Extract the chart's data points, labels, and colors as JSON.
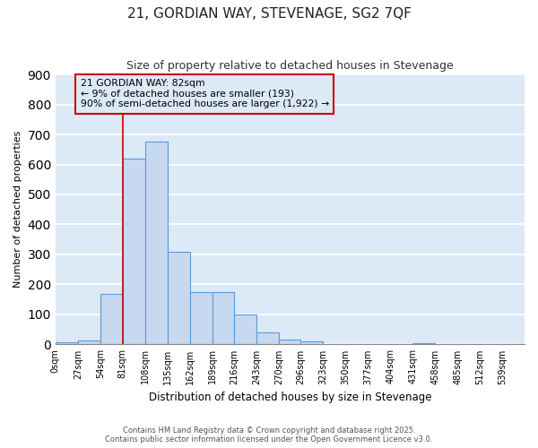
{
  "title": "21, GORDIAN WAY, STEVENAGE, SG2 7QF",
  "subtitle": "Size of property relative to detached houses in Stevenage",
  "xlabel": "Distribution of detached houses by size in Stevenage",
  "ylabel": "Number of detached properties",
  "bar_values": [
    7,
    12,
    170,
    620,
    675,
    310,
    175,
    175,
    100,
    40,
    15,
    10,
    0,
    0,
    0,
    0,
    5,
    0,
    0,
    0,
    0
  ],
  "bin_edges": [
    0,
    27,
    54,
    81,
    108,
    135,
    162,
    189,
    216,
    243,
    270,
    296,
    323,
    350,
    377,
    404,
    431,
    458,
    485,
    512,
    539,
    566
  ],
  "x_tick_labels": [
    "0sqm",
    "27sqm",
    "54sqm",
    "81sqm",
    "108sqm",
    "135sqm",
    "162sqm",
    "189sqm",
    "216sqm",
    "243sqm",
    "270sqm",
    "296sqm",
    "323sqm",
    "350sqm",
    "377sqm",
    "404sqm",
    "431sqm",
    "458sqm",
    "485sqm",
    "512sqm",
    "539sqm"
  ],
  "bar_color": "#c6d9f0",
  "bar_edge_color": "#5b9bd5",
  "plot_bg_color": "#dce9f7",
  "fig_bg_color": "#ffffff",
  "grid_color": "#ffffff",
  "red_line_x": 81,
  "ylim": [
    0,
    900
  ],
  "yticks": [
    0,
    100,
    200,
    300,
    400,
    500,
    600,
    700,
    800,
    900
  ],
  "annotation_text": "21 GORDIAN WAY: 82sqm\n← 9% of detached houses are smaller (193)\n90% of semi-detached houses are larger (1,922) →",
  "annotation_box_color": "#cc0000",
  "footer_line1": "Contains HM Land Registry data © Crown copyright and database right 2025.",
  "footer_line2": "Contains public sector information licensed under the Open Government Licence v3.0."
}
